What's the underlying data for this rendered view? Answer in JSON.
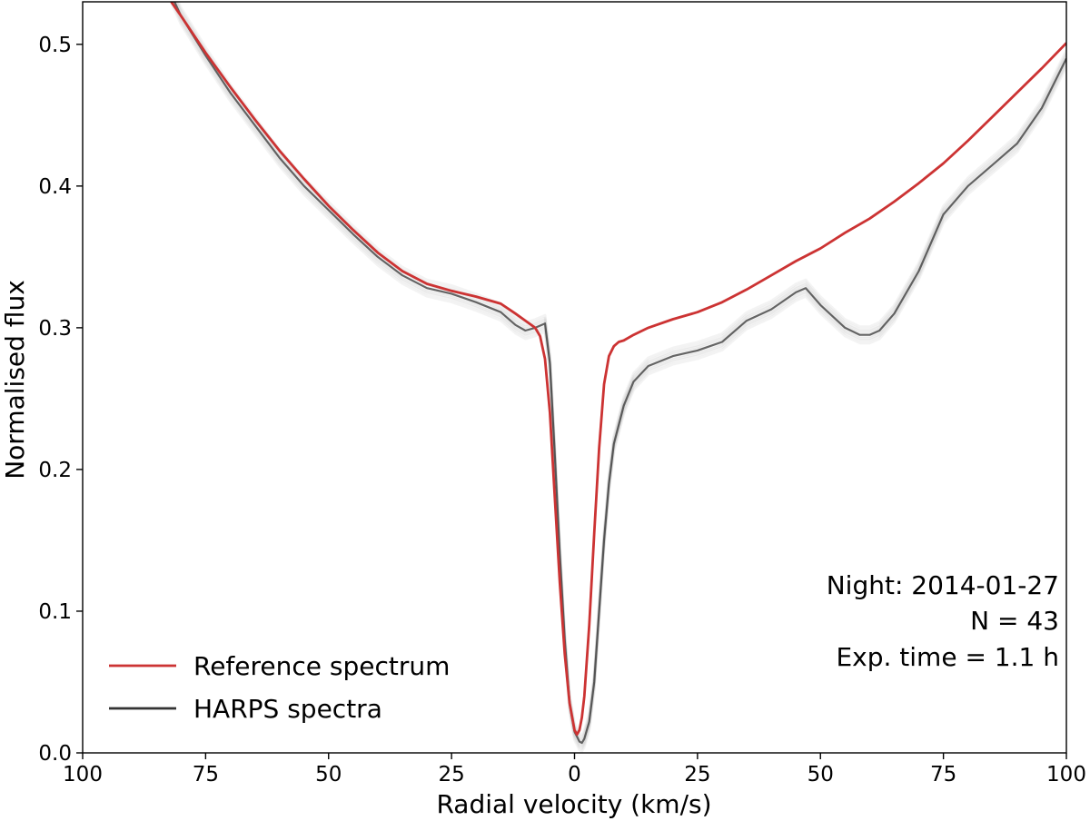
{
  "chart_data": {
    "type": "line",
    "title": "",
    "xlabel": "Radial velocity (km/s)",
    "ylabel": "Normalised flux",
    "xlim": [
      -100,
      100
    ],
    "ylim": [
      0.0,
      0.53
    ],
    "grid": false,
    "x_tick_values": [
      -100,
      -75,
      -50,
      -25,
      0,
      25,
      50,
      75,
      100
    ],
    "x_tick_labels": [
      "100",
      "75",
      "50",
      "25",
      "0",
      "25",
      "50",
      "75",
      "100"
    ],
    "y_tick_values": [
      0.0,
      0.1,
      0.2,
      0.3,
      0.4,
      0.5
    ],
    "y_tick_labels": [
      "0.0",
      "0.1",
      "0.2",
      "0.3",
      "0.4",
      "0.5"
    ],
    "legend": {
      "placement": "lower-left",
      "entries": [
        "Reference spectrum",
        "HARPS spectra"
      ]
    },
    "annotations": [
      "Night: 2014-01-27",
      "N = 43",
      "Exp. time = 1.1 h"
    ],
    "colors": {
      "reference": "#cc3333",
      "harps": "#333333",
      "harps_individual": "#999999"
    },
    "series": [
      {
        "name": "Reference spectrum",
        "x": [
          -82,
          -80,
          -75,
          -70,
          -65,
          -60,
          -55,
          -50,
          -45,
          -40,
          -35,
          -30,
          -25,
          -20,
          -15,
          -12,
          -10,
          -8,
          -7,
          -6,
          -5,
          -4,
          -3,
          -2,
          -1,
          0,
          0.5,
          1,
          1.5,
          2,
          3,
          4,
          5,
          6,
          7,
          8,
          9,
          10,
          12,
          15,
          20,
          25,
          30,
          35,
          40,
          45,
          50,
          55,
          60,
          65,
          70,
          75,
          80,
          85,
          90,
          95,
          100
        ],
        "y": [
          0.53,
          0.52,
          0.494,
          0.47,
          0.447,
          0.425,
          0.405,
          0.386,
          0.369,
          0.353,
          0.34,
          0.331,
          0.326,
          0.322,
          0.317,
          0.31,
          0.305,
          0.3,
          0.294,
          0.278,
          0.24,
          0.18,
          0.12,
          0.07,
          0.035,
          0.016,
          0.013,
          0.016,
          0.025,
          0.04,
          0.09,
          0.155,
          0.215,
          0.26,
          0.28,
          0.287,
          0.29,
          0.291,
          0.295,
          0.3,
          0.306,
          0.311,
          0.318,
          0.327,
          0.337,
          0.347,
          0.356,
          0.367,
          0.377,
          0.389,
          0.402,
          0.416,
          0.432,
          0.449,
          0.466,
          0.483,
          0.501
        ]
      },
      {
        "name": "HARPS spectra",
        "x": [
          -82,
          -80,
          -75,
          -70,
          -65,
          -60,
          -55,
          -50,
          -45,
          -40,
          -35,
          -30,
          -25,
          -20,
          -15,
          -12,
          -10,
          -8,
          -6,
          -5,
          -4,
          -3,
          -2,
          -1,
          0,
          1,
          1.5,
          2,
          3,
          4,
          5,
          6,
          7,
          8,
          10,
          12,
          15,
          20,
          25,
          30,
          35,
          40,
          45,
          47,
          50,
          55,
          58,
          60,
          62,
          65,
          70,
          75,
          80,
          85,
          90,
          95,
          100
        ],
        "y": [
          0.535,
          0.52,
          0.492,
          0.466,
          0.443,
          0.42,
          0.4,
          0.383,
          0.366,
          0.35,
          0.337,
          0.328,
          0.324,
          0.318,
          0.311,
          0.302,
          0.298,
          0.3,
          0.303,
          0.275,
          0.21,
          0.14,
          0.08,
          0.035,
          0.015,
          0.008,
          0.007,
          0.01,
          0.022,
          0.05,
          0.1,
          0.15,
          0.19,
          0.218,
          0.245,
          0.262,
          0.273,
          0.28,
          0.284,
          0.29,
          0.305,
          0.313,
          0.325,
          0.328,
          0.316,
          0.3,
          0.295,
          0.295,
          0.298,
          0.31,
          0.34,
          0.38,
          0.4,
          0.415,
          0.43,
          0.455,
          0.49
        ]
      }
    ]
  }
}
